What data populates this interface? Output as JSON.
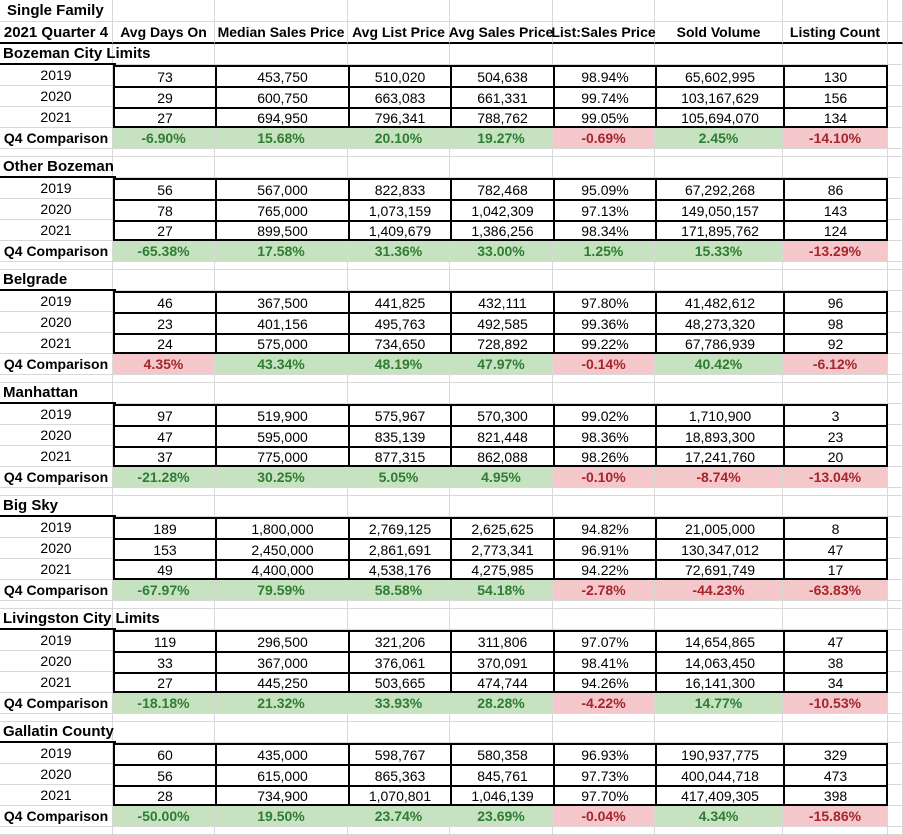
{
  "sheet": {
    "title_line1": "Single Family",
    "title_line2": "2021 Quarter 4",
    "comparison_label": "Q4 Comparison",
    "columns": [
      "Avg Days On",
      "Median Sales Price",
      "Avg List Price",
      "Avg Sales Price",
      "List:Sales Price",
      "Sold Volume",
      "Listing Count"
    ],
    "colors": {
      "positive_bg": "#c6e2c1",
      "positive_text": "#2e7d32",
      "negative_bg": "#f4c7cb",
      "negative_text": "#a5262c",
      "grid_line": "#d8d8d8",
      "data_border": "#000000"
    },
    "sections": [
      {
        "name": "Bozeman City Limits",
        "rows": [
          {
            "year": "2019",
            "values": [
              "73",
              "453,750",
              "510,020",
              "504,638",
              "98.94%",
              "65,602,995",
              "130"
            ]
          },
          {
            "year": "2020",
            "values": [
              "29",
              "600,750",
              "663,083",
              "661,331",
              "99.74%",
              "103,167,629",
              "156"
            ]
          },
          {
            "year": "2021",
            "values": [
              "27",
              "694,950",
              "796,341",
              "788,762",
              "99.05%",
              "105,694,070",
              "134"
            ]
          }
        ],
        "comparison": {
          "values": [
            "-6.90%",
            "15.68%",
            "20.10%",
            "19.27%",
            "-0.69%",
            "2.45%",
            "-14.10%"
          ],
          "status": [
            "good",
            "good",
            "good",
            "good",
            "bad",
            "good",
            "bad"
          ]
        }
      },
      {
        "name": "Other Bozeman",
        "rows": [
          {
            "year": "2019",
            "values": [
              "56",
              "567,000",
              "822,833",
              "782,468",
              "95.09%",
              "67,292,268",
              "86"
            ]
          },
          {
            "year": "2020",
            "values": [
              "78",
              "765,000",
              "1,073,159",
              "1,042,309",
              "97.13%",
              "149,050,157",
              "143"
            ]
          },
          {
            "year": "2021",
            "values": [
              "27",
              "899,500",
              "1,409,679",
              "1,386,256",
              "98.34%",
              "171,895,762",
              "124"
            ]
          }
        ],
        "comparison": {
          "values": [
            "-65.38%",
            "17.58%",
            "31.36%",
            "33.00%",
            "1.25%",
            "15.33%",
            "-13.29%"
          ],
          "status": [
            "good",
            "good",
            "good",
            "good",
            "good",
            "good",
            "bad"
          ]
        }
      },
      {
        "name": "Belgrade",
        "rows": [
          {
            "year": "2019",
            "values": [
              "46",
              "367,500",
              "441,825",
              "432,111",
              "97.80%",
              "41,482,612",
              "96"
            ]
          },
          {
            "year": "2020",
            "values": [
              "23",
              "401,156",
              "495,763",
              "492,585",
              "99.36%",
              "48,273,320",
              "98"
            ]
          },
          {
            "year": "2021",
            "values": [
              "24",
              "575,000",
              "734,650",
              "728,892",
              "99.22%",
              "67,786,939",
              "92"
            ]
          }
        ],
        "comparison": {
          "values": [
            "4.35%",
            "43.34%",
            "48.19%",
            "47.97%",
            "-0.14%",
            "40.42%",
            "-6.12%"
          ],
          "status": [
            "bad",
            "good",
            "good",
            "good",
            "bad",
            "good",
            "bad"
          ]
        }
      },
      {
        "name": "Manhattan",
        "rows": [
          {
            "year": "2019",
            "values": [
              "97",
              "519,900",
              "575,967",
              "570,300",
              "99.02%",
              "1,710,900",
              "3"
            ]
          },
          {
            "year": "2020",
            "values": [
              "47",
              "595,000",
              "835,139",
              "821,448",
              "98.36%",
              "18,893,300",
              "23"
            ]
          },
          {
            "year": "2021",
            "values": [
              "37",
              "775,000",
              "877,315",
              "862,088",
              "98.26%",
              "17,241,760",
              "20"
            ]
          }
        ],
        "comparison": {
          "values": [
            "-21.28%",
            "30.25%",
            "5.05%",
            "4.95%",
            "-0.10%",
            "-8.74%",
            "-13.04%"
          ],
          "status": [
            "good",
            "good",
            "good",
            "good",
            "bad",
            "bad",
            "bad"
          ]
        }
      },
      {
        "name": "Big Sky",
        "rows": [
          {
            "year": "2019",
            "values": [
              "189",
              "1,800,000",
              "2,769,125",
              "2,625,625",
              "94.82%",
              "21,005,000",
              "8"
            ]
          },
          {
            "year": "2020",
            "values": [
              "153",
              "2,450,000",
              "2,861,691",
              "2,773,341",
              "96.91%",
              "130,347,012",
              "47"
            ]
          },
          {
            "year": "2021",
            "values": [
              "49",
              "4,400,000",
              "4,538,176",
              "4,275,985",
              "94.22%",
              "72,691,749",
              "17"
            ]
          }
        ],
        "comparison": {
          "values": [
            "-67.97%",
            "79.59%",
            "58.58%",
            "54.18%",
            "-2.78%",
            "-44.23%",
            "-63.83%"
          ],
          "status": [
            "good",
            "good",
            "good",
            "good",
            "bad",
            "bad",
            "bad"
          ]
        }
      },
      {
        "name": "Livingston City Limits",
        "rows": [
          {
            "year": "2019",
            "values": [
              "119",
              "296,500",
              "321,206",
              "311,806",
              "97.07%",
              "14,654,865",
              "47"
            ]
          },
          {
            "year": "2020",
            "values": [
              "33",
              "367,000",
              "376,061",
              "370,091",
              "98.41%",
              "14,063,450",
              "38"
            ]
          },
          {
            "year": "2021",
            "values": [
              "27",
              "445,250",
              "503,665",
              "474,744",
              "94.26%",
              "16,141,300",
              "34"
            ]
          }
        ],
        "comparison": {
          "values": [
            "-18.18%",
            "21.32%",
            "33.93%",
            "28.28%",
            "-4.22%",
            "14.77%",
            "-10.53%"
          ],
          "status": [
            "good",
            "good",
            "good",
            "good",
            "bad",
            "good",
            "bad"
          ]
        }
      },
      {
        "name": "Gallatin County",
        "rows": [
          {
            "year": "2019",
            "values": [
              "60",
              "435,000",
              "598,767",
              "580,358",
              "96.93%",
              "190,937,775",
              "329"
            ]
          },
          {
            "year": "2020",
            "values": [
              "56",
              "615,000",
              "865,363",
              "845,761",
              "97.73%",
              "400,044,718",
              "473"
            ]
          },
          {
            "year": "2021",
            "values": [
              "28",
              "734,900",
              "1,070,801",
              "1,046,139",
              "97.70%",
              "417,409,305",
              "398"
            ]
          }
        ],
        "comparison": {
          "values": [
            "-50.00%",
            "19.50%",
            "23.74%",
            "23.69%",
            "-0.04%",
            "4.34%",
            "-15.86%"
          ],
          "status": [
            "good",
            "good",
            "good",
            "good",
            "bad",
            "good",
            "bad"
          ]
        }
      }
    ]
  }
}
